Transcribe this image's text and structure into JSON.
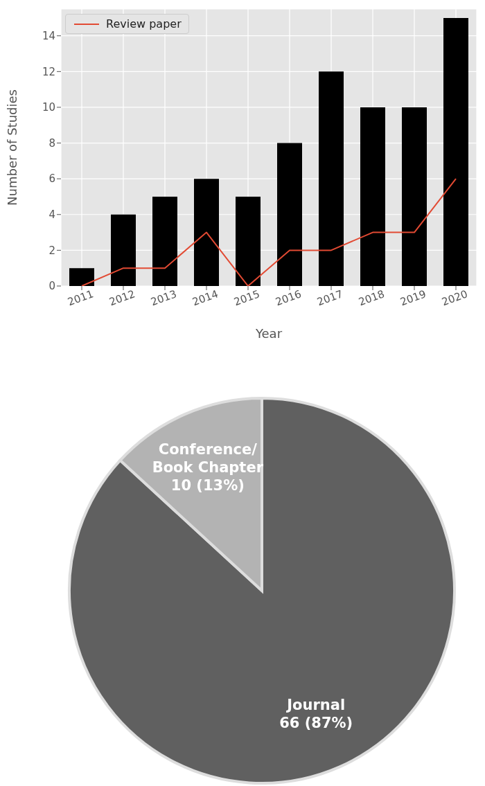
{
  "chart_data": [
    {
      "type": "bar",
      "xlabel": "Year",
      "ylabel": "Number of Studies",
      "categories": [
        "2011",
        "2012",
        "2013",
        "2014",
        "2015",
        "2016",
        "2017",
        "2018",
        "2019",
        "2020"
      ],
      "series": [
        {
          "type": "bar",
          "color": "#000000",
          "values": [
            1,
            4,
            5,
            6,
            5,
            8,
            12,
            10,
            10,
            15
          ]
        },
        {
          "type": "line",
          "name": "Review paper",
          "color": "#e24a33",
          "values": [
            0,
            1,
            1,
            3,
            0,
            2,
            2,
            3,
            3,
            6
          ]
        }
      ],
      "ylim": [
        0,
        15.5
      ],
      "yticks": [
        0,
        2,
        4,
        6,
        8,
        10,
        12,
        14
      ],
      "grid": true,
      "legend": "top left"
    },
    {
      "type": "pie",
      "categories": [
        "Journal",
        "Conference/ Book Chapter"
      ],
      "values": [
        66,
        10
      ],
      "colors": [
        "#606060",
        "#b3b3b3"
      ],
      "value_labels": [
        "66 (87%)",
        "10 (13%)"
      ]
    }
  ]
}
